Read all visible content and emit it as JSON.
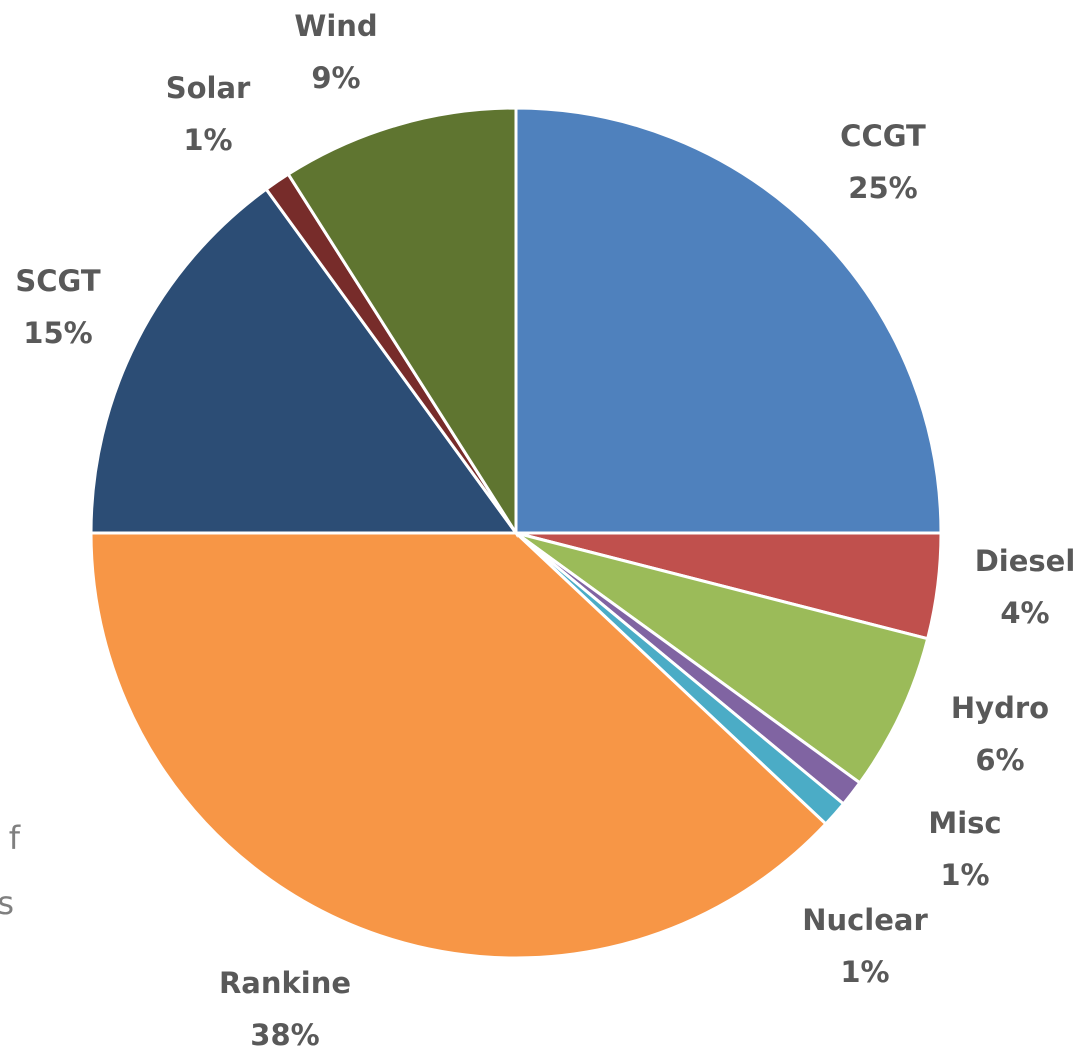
{
  "chart_data": {
    "type": "pie",
    "categories": [
      "CCGT",
      "Diesel",
      "Hydro",
      "Misc",
      "Nuclear",
      "Rankine",
      "SCGT",
      "Solar",
      "Wind"
    ],
    "values": [
      25,
      4,
      6,
      1,
      1,
      38,
      15,
      1,
      9
    ],
    "value_labels": [
      "25%",
      "4%",
      "6%",
      "1%",
      "1%",
      "38%",
      "15%",
      "1%",
      "9%"
    ],
    "colors": [
      "#4f81bd",
      "#c0504d",
      "#9bbb59",
      "#8064a2",
      "#4bacc6",
      "#f79646",
      "#2c4d75",
      "#772c2a",
      "#5f7530"
    ],
    "annotations": [
      "f",
      "ts"
    ]
  }
}
